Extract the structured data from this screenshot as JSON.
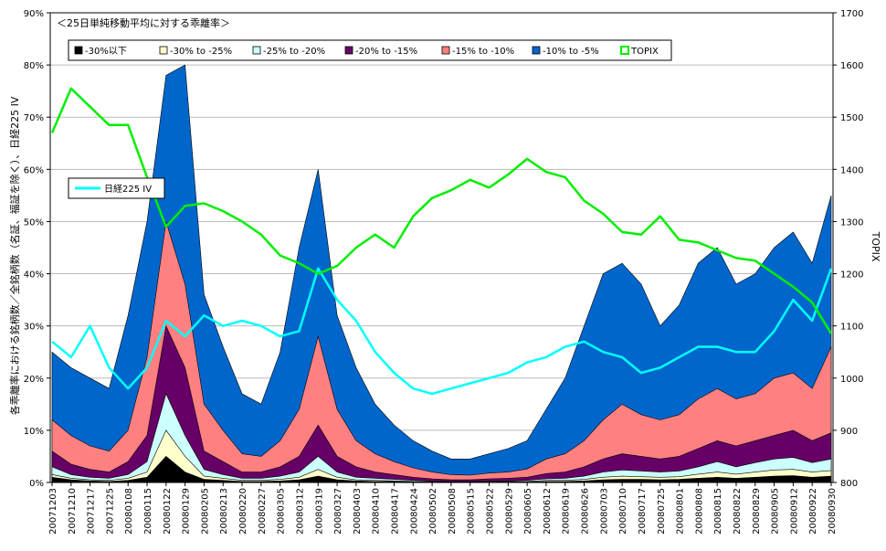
{
  "chart_data": {
    "type": "area",
    "title": "＜25日単純移動平均に対する乖離率＞",
    "ylabel": "各乖離率における銘柄数／全銘柄数（名証、福証を除く）、日経225 IV",
    "y2label": "TOPIX",
    "ylim": [
      0,
      90
    ],
    "y2lim": [
      800,
      1700
    ],
    "yticks": [
      "0%",
      "10%",
      "20%",
      "30%",
      "40%",
      "50%",
      "60%",
      "70%",
      "80%",
      "90%"
    ],
    "y2ticks": [
      "800",
      "900",
      "1000",
      "1100",
      "1200",
      "1300",
      "1400",
      "1500",
      "1600",
      "1700"
    ],
    "categories": [
      "20071203",
      "20071210",
      "20071217",
      "20071225",
      "20080108",
      "20080115",
      "20080122",
      "20080129",
      "20080205",
      "20080213",
      "20080220",
      "20080227",
      "20080305",
      "20080312",
      "20080319",
      "20080327",
      "20080403",
      "20080410",
      "20080417",
      "20080424",
      "20080502",
      "20080508",
      "20080515",
      "20080522",
      "20080529",
      "20080605",
      "20080612",
      "20080619",
      "20080626",
      "20080703",
      "20080710",
      "20080717",
      "20080725",
      "20080801",
      "20080808",
      "20080815",
      "20080822",
      "20080829",
      "20080905",
      "20080912",
      "20080922",
      "20080930"
    ],
    "stack_cumulative_note": "series values are cumulative stack tops (%) at each category",
    "series": [
      {
        "name": "-30%以下",
        "color": "#000000",
        "axis": "left",
        "kind": "stack",
        "values": [
          1,
          0.5,
          0.3,
          0.2,
          0.4,
          1,
          5,
          2,
          0.6,
          0.4,
          0.2,
          0.2,
          0.3,
          0.5,
          1.2,
          0.5,
          0.3,
          0.2,
          0.2,
          0.1,
          0.1,
          0.1,
          0.1,
          0.1,
          0.1,
          0.1,
          0.2,
          0.2,
          0.3,
          0.5,
          0.6,
          0.6,
          0.5,
          0.6,
          0.8,
          1,
          0.8,
          1,
          1.2,
          1.3,
          1,
          1.2
        ]
      },
      {
        "name": "-30% to -25%",
        "color": "#FFFFCC",
        "axis": "left",
        "kind": "stack",
        "values": [
          1.5,
          0.8,
          0.5,
          0.4,
          0.8,
          2,
          10,
          5,
          1.2,
          0.8,
          0.4,
          0.4,
          0.6,
          1,
          2.5,
          1,
          0.5,
          0.4,
          0.3,
          0.2,
          0.2,
          0.1,
          0.1,
          0.2,
          0.2,
          0.2,
          0.4,
          0.4,
          0.6,
          1,
          1.2,
          1.1,
          1,
          1.1,
          1.6,
          2,
          1.6,
          2,
          2.4,
          2.5,
          2,
          2.3
        ]
      },
      {
        "name": "-25% to -20%",
        "color": "#CCFFFF",
        "axis": "left",
        "kind": "stack",
        "values": [
          3,
          1.5,
          1,
          0.8,
          1.5,
          4,
          17,
          9,
          2.5,
          1.5,
          0.8,
          0.8,
          1.2,
          2,
          5,
          2,
          1,
          0.8,
          0.6,
          0.4,
          0.3,
          0.2,
          0.2,
          0.3,
          0.3,
          0.4,
          0.7,
          0.8,
          1.2,
          2,
          2.4,
          2.2,
          2,
          2.2,
          3,
          4,
          3,
          3.8,
          4.5,
          4.8,
          3.8,
          4.5
        ]
      },
      {
        "name": "-20% to -15%",
        "color": "#660066",
        "axis": "left",
        "kind": "stack",
        "values": [
          6,
          3.5,
          2.5,
          2,
          4,
          9,
          30,
          22,
          6,
          4,
          2,
          2,
          3,
          5,
          11,
          5,
          3,
          2,
          1.5,
          1,
          0.7,
          0.5,
          0.5,
          0.7,
          0.8,
          1,
          1.7,
          2,
          3,
          4.5,
          5.5,
          5,
          4.5,
          5,
          6.5,
          8,
          7,
          8,
          9,
          10,
          8,
          9.5
        ]
      },
      {
        "name": "-15% to -10%",
        "color": "#FF8080",
        "axis": "left",
        "kind": "stack",
        "values": [
          12,
          9,
          7,
          6,
          10,
          24,
          50,
          38,
          15,
          10,
          5.5,
          5,
          8,
          14,
          28,
          14,
          8,
          5.5,
          4,
          2.8,
          2,
          1.5,
          1.4,
          1.8,
          2,
          2.6,
          4.5,
          5.5,
          8,
          12,
          15,
          13,
          12,
          13,
          16,
          18,
          16,
          17,
          20,
          21,
          18,
          26
        ]
      },
      {
        "name": "-10% to -5%",
        "color": "#0066CC",
        "axis": "left",
        "kind": "stack",
        "values": [
          25,
          22,
          20,
          18,
          32,
          50,
          78,
          80,
          36,
          26,
          17,
          15,
          25,
          45,
          60,
          32,
          22,
          15,
          11,
          8,
          6,
          4.5,
          4.5,
          5.5,
          6.5,
          8,
          14,
          20,
          30,
          40,
          42,
          38,
          30,
          34,
          42,
          45,
          38,
          40,
          45,
          48,
          42,
          55
        ]
      },
      {
        "name": "日経225 IV",
        "color": "#00FFFF",
        "axis": "left",
        "kind": "line",
        "values": [
          27,
          24,
          30,
          22,
          18,
          22,
          31,
          28,
          32,
          30,
          31,
          30,
          28,
          29,
          41,
          35,
          31,
          25,
          21,
          18,
          17,
          18,
          19,
          20,
          21,
          23,
          24,
          26,
          27,
          25,
          24,
          21,
          22,
          24,
          26,
          26,
          25,
          25,
          29,
          35,
          31,
          41
        ]
      },
      {
        "name": "TOPIX",
        "color": "#00EE00",
        "axis": "right",
        "kind": "line",
        "values": [
          1470,
          1555,
          1520,
          1485,
          1485,
          1385,
          1290,
          1330,
          1335,
          1320,
          1300,
          1275,
          1235,
          1220,
          1200,
          1215,
          1250,
          1275,
          1250,
          1310,
          1345,
          1360,
          1380,
          1365,
          1390,
          1420,
          1395,
          1385,
          1340,
          1315,
          1280,
          1275,
          1310,
          1265,
          1260,
          1245,
          1230,
          1225,
          1200,
          1175,
          1145,
          1085
        ]
      }
    ],
    "legend": [
      "-30%以下",
      "-30% to -25%",
      "-25% to -20%",
      "-20% to -15%",
      "-15% to -10%",
      "-10% to -5%",
      "TOPIX"
    ],
    "inner_legend": "日経225 IV"
  }
}
